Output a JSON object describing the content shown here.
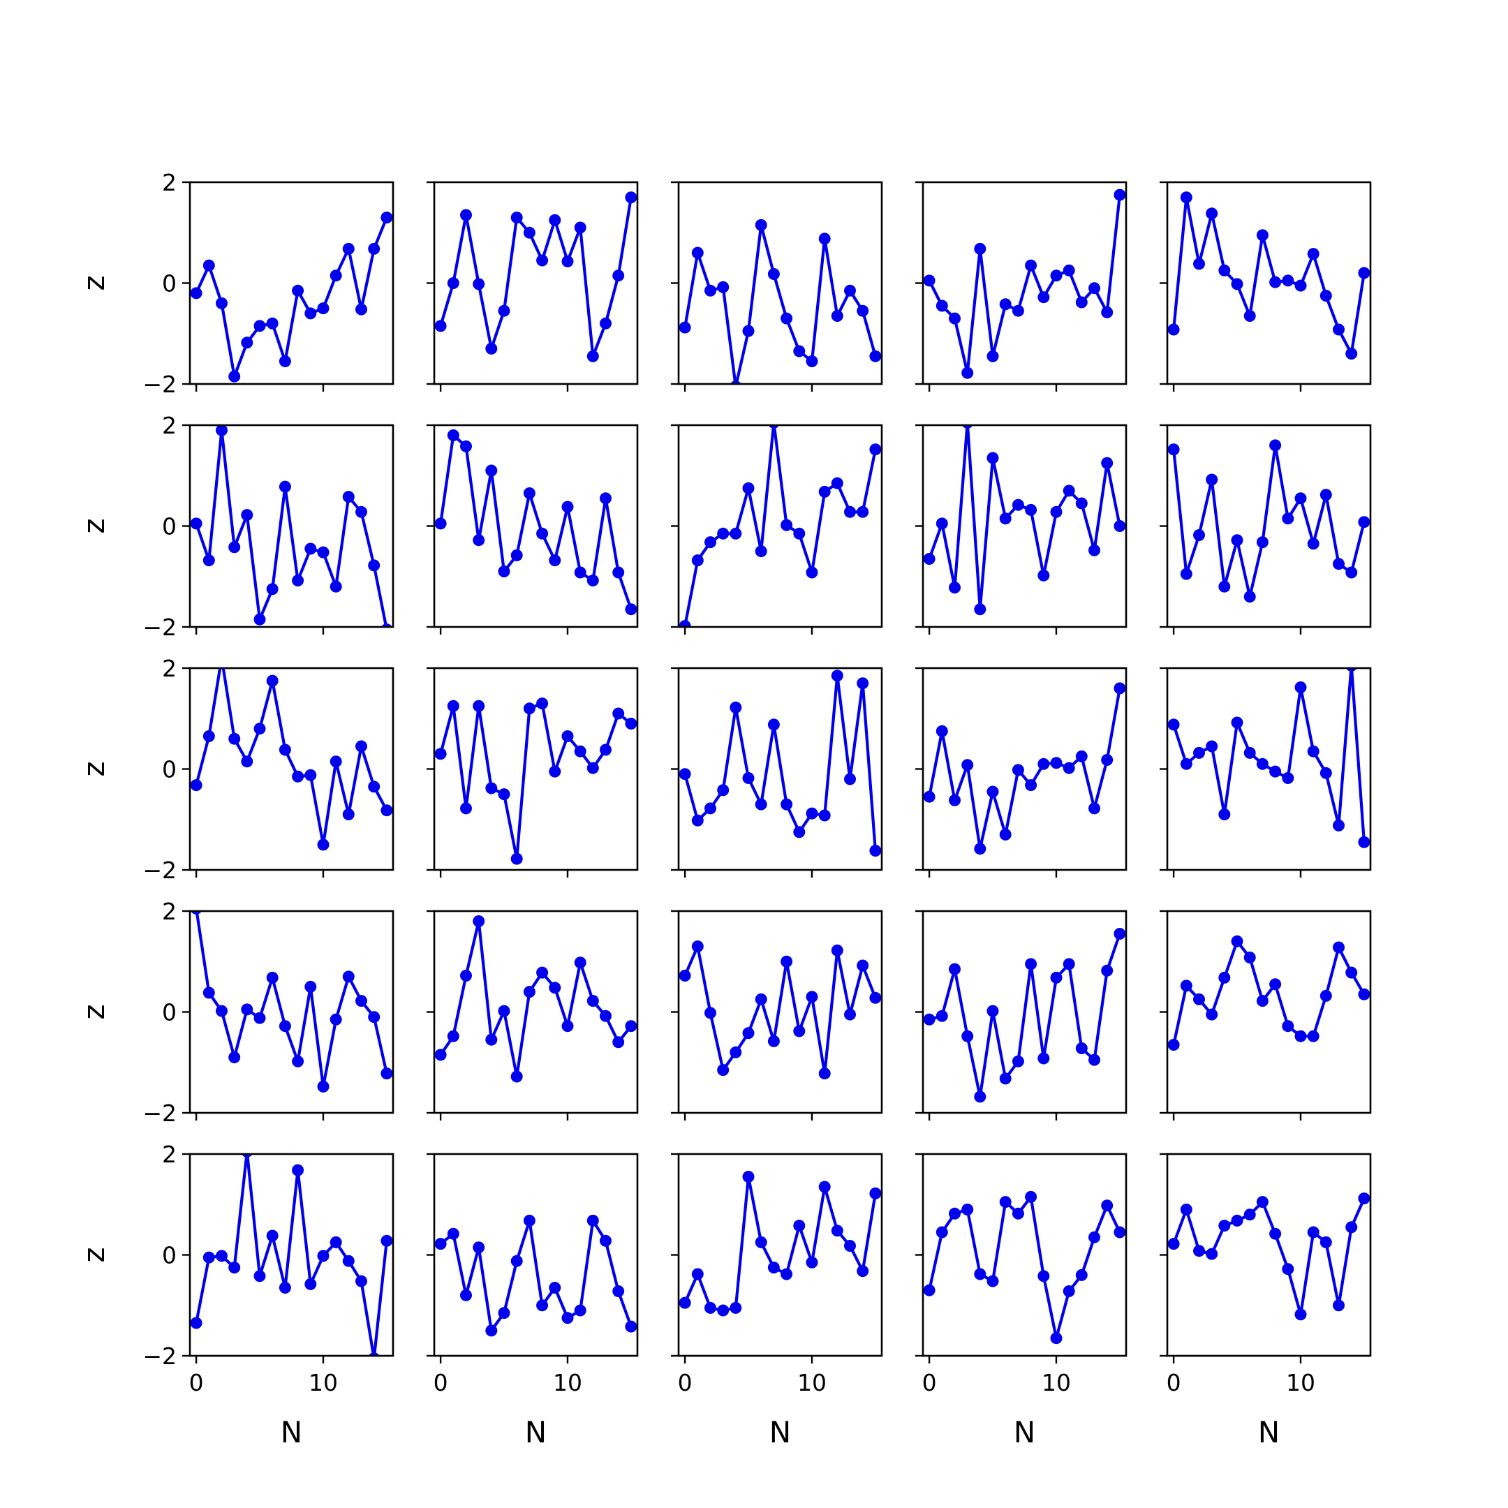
{
  "chart_data": {
    "type": "line",
    "layout": "5x5 grid of small-multiple line plots with markers",
    "xlabel": "N",
    "ylabel": "z",
    "x_ticks": [
      0,
      10
    ],
    "y_ticks": [
      -2,
      0,
      2
    ],
    "y_tick_labels": [
      "−2",
      "0",
      "2"
    ],
    "xlim": [
      -0.5,
      15.5
    ],
    "ylim": [
      -2,
      2
    ],
    "grid": false,
    "legend": "none",
    "line_color": "#0000ee",
    "x": [
      0,
      1,
      2,
      3,
      4,
      5,
      6,
      7,
      8,
      9,
      10,
      11,
      12,
      13,
      14,
      15
    ],
    "panels": [
      {
        "row": 1,
        "col": 1,
        "y": [
          -0.2,
          0.35,
          -0.4,
          -1.85,
          -1.18,
          -0.85,
          -0.8,
          -1.55,
          -0.15,
          -0.6,
          -0.5,
          0.15,
          0.68,
          -0.52,
          0.68,
          1.3
        ]
      },
      {
        "row": 1,
        "col": 2,
        "y": [
          -0.85,
          0.0,
          1.35,
          -0.02,
          -1.3,
          -0.55,
          1.3,
          1.0,
          0.45,
          1.25,
          0.43,
          1.1,
          -1.45,
          -0.8,
          0.15,
          1.7
        ]
      },
      {
        "row": 1,
        "col": 3,
        "y": [
          -0.88,
          0.6,
          -0.15,
          -0.08,
          -2.05,
          -0.95,
          1.15,
          0.18,
          -0.7,
          -1.35,
          -1.55,
          0.88,
          -0.65,
          -0.15,
          -0.55,
          -1.45
        ]
      },
      {
        "row": 1,
        "col": 4,
        "y": [
          0.05,
          -0.45,
          -0.7,
          -1.78,
          0.68,
          -1.45,
          -0.42,
          -0.55,
          0.35,
          -0.28,
          0.15,
          0.25,
          -0.38,
          -0.1,
          -0.58,
          1.75
        ]
      },
      {
        "row": 1,
        "col": 5,
        "y": [
          -0.92,
          1.7,
          0.38,
          1.38,
          0.25,
          -0.02,
          -0.65,
          0.95,
          0.02,
          0.05,
          -0.05,
          0.58,
          -0.25,
          -0.92,
          -1.4,
          0.2
        ]
      },
      {
        "row": 2,
        "col": 1,
        "y": [
          0.05,
          -0.68,
          1.9,
          -0.42,
          0.22,
          -1.85,
          -1.25,
          0.78,
          -1.08,
          -0.45,
          -0.52,
          -1.2,
          0.58,
          0.28,
          -0.78,
          -2.05
        ]
      },
      {
        "row": 2,
        "col": 2,
        "y": [
          0.05,
          1.8,
          1.58,
          -0.28,
          1.1,
          -0.9,
          -0.58,
          0.65,
          -0.15,
          -0.68,
          0.38,
          -0.92,
          -1.08,
          0.55,
          -0.92,
          -1.65
        ]
      },
      {
        "row": 2,
        "col": 3,
        "y": [
          -1.98,
          -0.68,
          -0.32,
          -0.15,
          -0.15,
          0.75,
          -0.5,
          2.05,
          0.02,
          -0.15,
          -0.92,
          0.68,
          0.85,
          0.28,
          0.28,
          1.52
        ]
      },
      {
        "row": 2,
        "col": 4,
        "y": [
          -0.65,
          0.05,
          -1.22,
          2.05,
          -1.65,
          1.35,
          0.15,
          0.42,
          0.32,
          -0.98,
          0.28,
          0.7,
          0.45,
          -0.48,
          1.25,
          0.0
        ]
      },
      {
        "row": 2,
        "col": 5,
        "y": [
          1.52,
          -0.95,
          -0.18,
          0.92,
          -1.2,
          -0.28,
          -1.4,
          -0.32,
          1.6,
          0.15,
          0.55,
          -0.35,
          0.62,
          -0.75,
          -0.92,
          0.08
        ]
      },
      {
        "row": 3,
        "col": 1,
        "y": [
          -0.32,
          0.65,
          2.2,
          0.6,
          0.15,
          0.8,
          1.75,
          0.38,
          -0.15,
          -0.12,
          -1.5,
          0.15,
          -0.9,
          0.45,
          -0.35,
          -0.82
        ]
      },
      {
        "row": 3,
        "col": 2,
        "y": [
          0.3,
          1.25,
          -0.78,
          1.25,
          -0.38,
          -0.5,
          -1.78,
          1.2,
          1.3,
          -0.05,
          0.65,
          0.35,
          0.02,
          0.38,
          1.1,
          0.9
        ]
      },
      {
        "row": 3,
        "col": 3,
        "y": [
          -0.1,
          -1.02,
          -0.78,
          -0.42,
          1.22,
          -0.18,
          -0.7,
          0.88,
          -0.7,
          -1.25,
          -0.88,
          -0.92,
          1.85,
          -0.2,
          1.7,
          -1.62
        ]
      },
      {
        "row": 3,
        "col": 4,
        "y": [
          -0.55,
          0.75,
          -0.62,
          0.08,
          -1.58,
          -0.45,
          -1.3,
          -0.02,
          -0.32,
          0.1,
          0.12,
          0.02,
          0.25,
          -0.78,
          0.18,
          1.6
        ]
      },
      {
        "row": 3,
        "col": 5,
        "y": [
          0.88,
          0.1,
          0.32,
          0.45,
          -0.9,
          0.92,
          0.32,
          0.1,
          -0.05,
          -0.18,
          1.62,
          0.35,
          -0.08,
          -1.12,
          2.05,
          -1.45
        ]
      },
      {
        "row": 4,
        "col": 1,
        "y": [
          2.05,
          0.38,
          0.02,
          -0.9,
          0.05,
          -0.12,
          0.68,
          -0.28,
          -0.98,
          0.5,
          -1.48,
          -0.15,
          0.7,
          0.22,
          -0.1,
          -1.22
        ]
      },
      {
        "row": 4,
        "col": 2,
        "y": [
          -0.85,
          -0.48,
          0.72,
          1.8,
          -0.55,
          0.02,
          -1.28,
          0.4,
          0.78,
          0.48,
          -0.28,
          0.98,
          0.22,
          -0.08,
          -0.6,
          -0.28
        ]
      },
      {
        "row": 4,
        "col": 3,
        "y": [
          0.72,
          1.3,
          -0.02,
          -1.15,
          -0.8,
          -0.42,
          0.25,
          -0.58,
          1.0,
          -0.38,
          0.3,
          -1.22,
          1.22,
          -0.05,
          0.92,
          0.28
        ]
      },
      {
        "row": 4,
        "col": 4,
        "y": [
          -0.15,
          -0.08,
          0.85,
          -0.48,
          -1.68,
          0.02,
          -1.32,
          -0.98,
          0.95,
          -0.92,
          0.68,
          0.95,
          -0.72,
          -0.95,
          0.82,
          1.55
        ]
      },
      {
        "row": 4,
        "col": 5,
        "y": [
          -0.65,
          0.52,
          0.25,
          -0.05,
          0.68,
          1.4,
          1.08,
          0.22,
          0.55,
          -0.28,
          -0.48,
          -0.48,
          0.32,
          1.28,
          0.78,
          0.35
        ]
      },
      {
        "row": 5,
        "col": 1,
        "y": [
          -1.35,
          -0.05,
          -0.02,
          -0.25,
          2.05,
          -0.42,
          0.38,
          -0.65,
          1.68,
          -0.58,
          -0.02,
          0.25,
          -0.12,
          -0.52,
          -2.05,
          0.28
        ]
      },
      {
        "row": 5,
        "col": 2,
        "y": [
          0.22,
          0.42,
          -0.8,
          0.15,
          -1.5,
          -1.15,
          -0.12,
          0.68,
          -1.0,
          -0.65,
          -1.25,
          -1.1,
          0.68,
          0.28,
          -0.72,
          -1.42
        ]
      },
      {
        "row": 5,
        "col": 3,
        "y": [
          -0.95,
          -0.38,
          -1.05,
          -1.1,
          -1.05,
          1.55,
          0.25,
          -0.25,
          -0.38,
          0.58,
          -0.15,
          1.35,
          0.48,
          0.18,
          -0.32,
          1.22
        ]
      },
      {
        "row": 5,
        "col": 4,
        "y": [
          -0.7,
          0.45,
          0.82,
          0.9,
          -0.38,
          -0.52,
          1.05,
          0.82,
          1.15,
          -0.42,
          -1.65,
          -0.72,
          -0.4,
          0.35,
          0.98,
          0.45
        ]
      },
      {
        "row": 5,
        "col": 5,
        "y": [
          0.22,
          0.9,
          0.08,
          0.02,
          0.58,
          0.68,
          0.8,
          1.05,
          0.42,
          -0.28,
          -1.18,
          0.45,
          0.25,
          -1.0,
          0.55,
          1.12
        ]
      }
    ]
  }
}
